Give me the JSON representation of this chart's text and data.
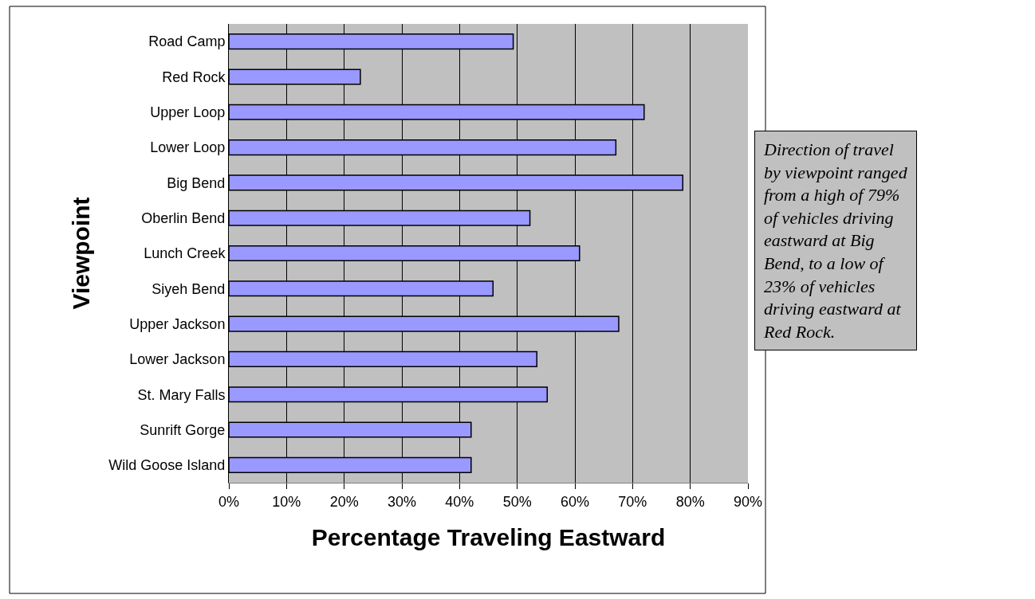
{
  "chart_data": {
    "type": "bar",
    "orientation": "horizontal",
    "xlabel": "Percentage Traveling Eastward",
    "ylabel": "Viewpoint",
    "categories": [
      "Road Camp",
      "Red Rock",
      "Upper Loop",
      "Lower Loop",
      "Big Bend",
      "Oberlin Bend",
      "Lunch Creek",
      "Siyeh Bend",
      "Upper Jackson",
      "Lower Jackson",
      "St. Mary Falls",
      "Sunrift Gorge",
      "Wild Goose Island"
    ],
    "values": [
      49.3,
      22.8,
      72.0,
      67.1,
      78.7,
      52.2,
      60.8,
      45.8,
      67.6,
      53.4,
      55.2,
      42.0,
      42.0
    ],
    "color": "#9999ff",
    "xlim": [
      0,
      90
    ],
    "xticks": [
      {
        "value": 0,
        "label": "0%"
      },
      {
        "value": 10,
        "label": "10%"
      },
      {
        "value": 20,
        "label": "20%"
      },
      {
        "value": 30,
        "label": "30%"
      },
      {
        "value": 40,
        "label": "40%"
      },
      {
        "value": 50,
        "label": "50%"
      },
      {
        "value": 60,
        "label": "60%"
      },
      {
        "value": 70,
        "label": "70%"
      },
      {
        "value": 80,
        "label": "80%"
      },
      {
        "value": 90,
        "label": "90%"
      }
    ],
    "grid": "x",
    "legend": false,
    "annotations": [
      "Direction of travel by viewpoint ranged from a high of 79% of vehicles driving eastward at Big Bend, to a low of 23% of vehicles driving eastward at Red Rock."
    ]
  }
}
